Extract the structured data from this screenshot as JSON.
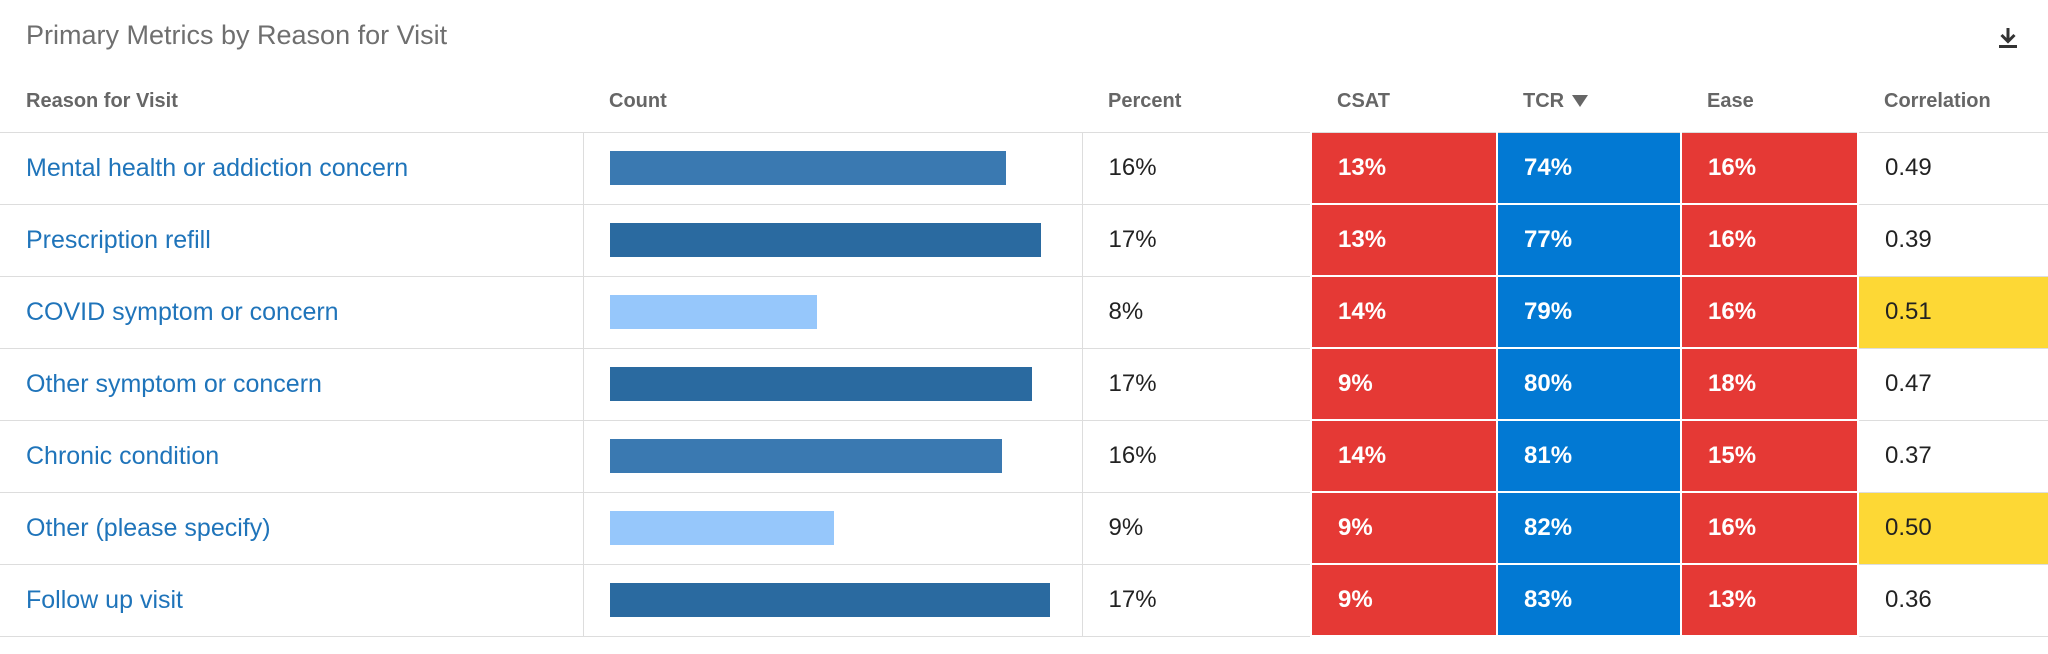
{
  "widget": {
    "title": "Primary Metrics by Reason for Visit",
    "download_icon": "download-icon"
  },
  "columns": {
    "reason": "Reason for Visit",
    "count": "Count",
    "percent": "Percent",
    "csat": "CSAT",
    "tcr": "TCR",
    "ease": "Ease",
    "correlation": "Correlation"
  },
  "sort": {
    "column": "tcr",
    "direction": "descending",
    "icon": "sort-down-icon"
  },
  "colors": {
    "heat_red": "#e53935",
    "heat_blue": "#0279d3",
    "highlight_yellow": "#fdd835",
    "link": "#1f74ba",
    "bar_dark": "#2a6aa0",
    "bar_mid": "#3a79b1",
    "bar_light": "#96c7fb"
  },
  "rows": [
    {
      "reason": "Mental health or addiction concern",
      "count_fraction": 0.9,
      "bar_color": "#3a79b1",
      "percent": "16%",
      "csat": "13%",
      "csat_color": "#e53935",
      "tcr": "74%",
      "tcr_color": "#0279d3",
      "ease": "16%",
      "ease_color": "#e53935",
      "correlation": "0.49",
      "correlation_bg": "#ffffff"
    },
    {
      "reason": "Prescription refill",
      "count_fraction": 0.98,
      "bar_color": "#2a6aa0",
      "percent": "17%",
      "csat": "13%",
      "csat_color": "#e53935",
      "tcr": "77%",
      "tcr_color": "#0279d3",
      "ease": "16%",
      "ease_color": "#e53935",
      "correlation": "0.39",
      "correlation_bg": "#ffffff"
    },
    {
      "reason": "COVID symptom or concern",
      "count_fraction": 0.47,
      "bar_color": "#96c7fb",
      "percent": "8%",
      "csat": "14%",
      "csat_color": "#e53935",
      "tcr": "79%",
      "tcr_color": "#0279d3",
      "ease": "16%",
      "ease_color": "#e53935",
      "correlation": "0.51",
      "correlation_bg": "#fdd835"
    },
    {
      "reason": "Other symptom or concern",
      "count_fraction": 0.96,
      "bar_color": "#2a6aa0",
      "percent": "17%",
      "csat": "9%",
      "csat_color": "#e53935",
      "tcr": "80%",
      "tcr_color": "#0279d3",
      "ease": "18%",
      "ease_color": "#e53935",
      "correlation": "0.47",
      "correlation_bg": "#ffffff"
    },
    {
      "reason": "Chronic condition",
      "count_fraction": 0.89,
      "bar_color": "#3a79b1",
      "percent": "16%",
      "csat": "14%",
      "csat_color": "#e53935",
      "tcr": "81%",
      "tcr_color": "#0279d3",
      "ease": "15%",
      "ease_color": "#e53935",
      "correlation": "0.37",
      "correlation_bg": "#ffffff"
    },
    {
      "reason": "Other (please specify)",
      "count_fraction": 0.51,
      "bar_color": "#96c7fb",
      "percent": "9%",
      "csat": "9%",
      "csat_color": "#e53935",
      "tcr": "82%",
      "tcr_color": "#0279d3",
      "ease": "16%",
      "ease_color": "#e53935",
      "correlation": "0.50",
      "correlation_bg": "#fdd835"
    },
    {
      "reason": "Follow up visit",
      "count_fraction": 1.0,
      "bar_color": "#2a6aa0",
      "percent": "17%",
      "csat": "9%",
      "csat_color": "#e53935",
      "tcr": "83%",
      "tcr_color": "#0279d3",
      "ease": "13%",
      "ease_color": "#e53935",
      "correlation": "0.36",
      "correlation_bg": "#ffffff"
    }
  ]
}
